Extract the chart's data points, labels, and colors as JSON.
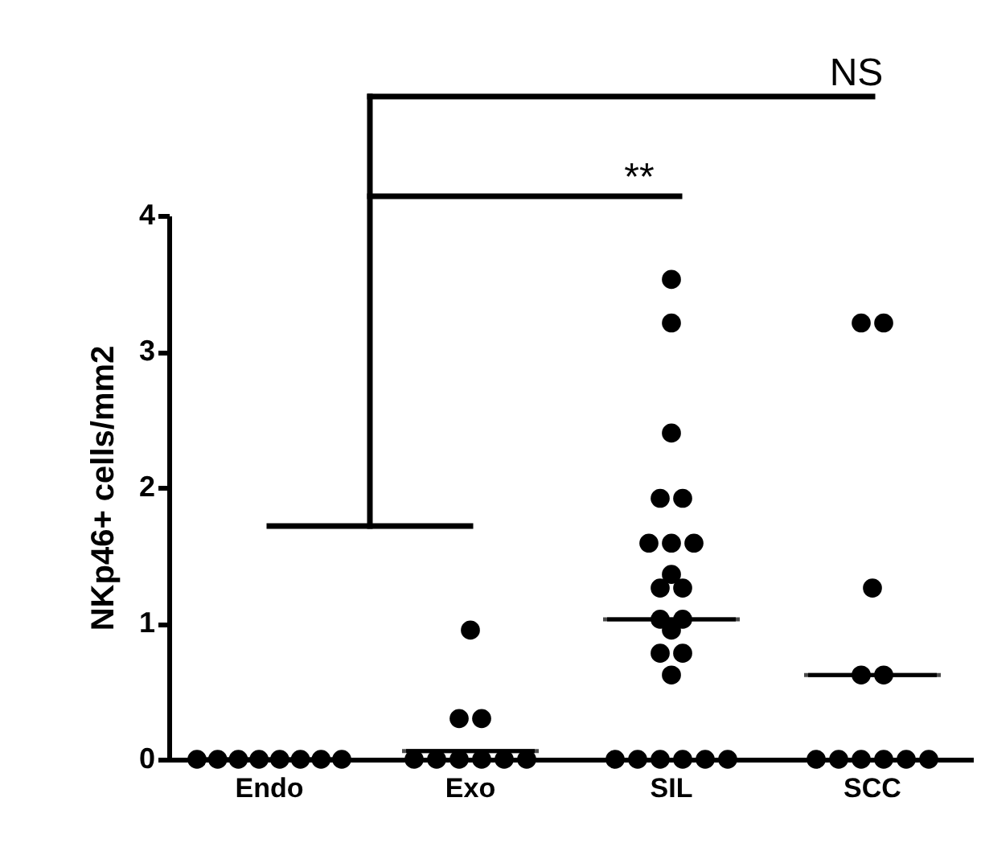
{
  "chart_data": {
    "type": "scatter",
    "categories": [
      "Endo",
      "Exo",
      "SIL",
      "SCC"
    ],
    "ylabel": "NKp46+ cells/mm2",
    "ylim": [
      0,
      4
    ],
    "yticks": [
      0,
      1,
      2,
      3,
      4
    ],
    "marker": "circle",
    "annotations": [
      "**",
      "NS"
    ],
    "series": [
      {
        "color": "#000000",
        "x": [
          "Endo",
          "Endo",
          "Endo",
          "Endo",
          "Endo",
          "Endo",
          "Endo",
          "Endo",
          "Exo",
          "Exo",
          "Exo",
          "Exo",
          "Exo",
          "Exo",
          "Exo",
          "Exo",
          "Exo",
          "SIL",
          "SIL",
          "SIL",
          "SIL",
          "SIL",
          "SIL",
          "SIL",
          "SIL",
          "SIL",
          "SIL",
          "SIL",
          "SIL",
          "SIL",
          "SIL",
          "SIL",
          "SIL",
          "SIL",
          "SIL",
          "SIL",
          "SIL",
          "SIL",
          "SIL",
          "SIL",
          "SCC",
          "SCC",
          "SCC",
          "SCC",
          "SCC",
          "SCC",
          "SCC",
          "SCC",
          "SCC",
          "SCC",
          "SCC"
        ],
        "values": [
          0,
          0,
          0,
          0,
          0,
          0,
          0,
          0,
          0.95,
          0.3,
          0.3,
          0,
          0,
          0,
          0,
          0,
          0,
          3.53,
          3.21,
          2.4,
          1.92,
          1.92,
          1.59,
          1.59,
          1.59,
          1.36,
          1.26,
          1.26,
          1.03,
          1.03,
          0.95,
          0.78,
          0.78,
          0.62,
          0,
          0,
          0,
          0,
          0,
          0,
          3.21,
          3.21,
          1.26,
          0.62,
          0.62,
          0,
          0,
          0,
          0,
          0,
          0
        ]
      },
      {
        "type": "box",
        "color": "#000000",
        "boxes": [
          {
            "low": 0,
            "q1": 0,
            "median": 0,
            "q3": 0,
            "high": 0
          },
          {
            "low": 0.06,
            "q1": 0.06,
            "median": 0.06,
            "q3": 0.06,
            "high": 0.06
          },
          {
            "low": 1.03,
            "q1": 1.03,
            "median": 1.03,
            "q3": 1.03,
            "high": 1.03
          },
          {
            "low": 0.62,
            "q1": 0.62,
            "median": 0.62,
            "q3": 0.62,
            "high": 0.62
          }
        ]
      }
    ]
  }
}
